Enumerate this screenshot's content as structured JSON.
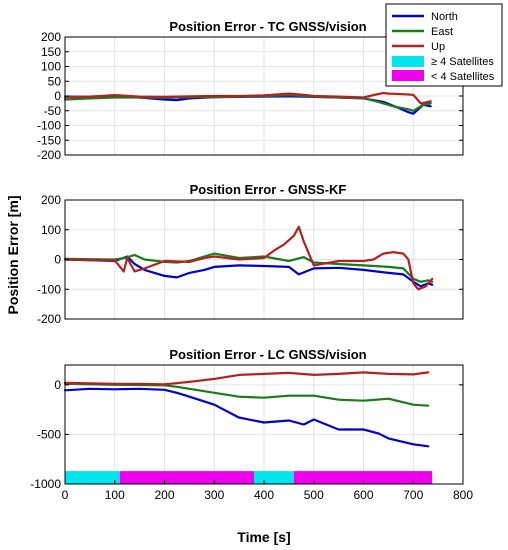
{
  "figure": {
    "ylabel": "Position Error [m]",
    "xlabel": "Time [s]"
  },
  "legend": {
    "items": [
      {
        "label": "North",
        "color": "#0000cc",
        "kind": "line"
      },
      {
        "label": "East",
        "color": "#1b7a1b",
        "kind": "line"
      },
      {
        "label": "Up",
        "color": "#b22222",
        "kind": "line"
      },
      {
        "label": "≥ 4 Satellites",
        "color": "#00e5ee",
        "kind": "patch"
      },
      {
        "label": "< 4 Satellites",
        "color": "#ee00ee",
        "kind": "patch"
      }
    ]
  },
  "chart_data": [
    {
      "type": "line",
      "title": "Position Error - TC GNSS/vision",
      "xlim": [
        0,
        800
      ],
      "ylim": [
        -200,
        200
      ],
      "yticks": [
        -200,
        -150,
        -100,
        -50,
        0,
        50,
        100,
        150,
        200
      ],
      "xticks": [],
      "grid": true,
      "series": [
        {
          "name": "North",
          "color": "#0000cc",
          "x": [
            0,
            50,
            100,
            150,
            200,
            225,
            250,
            300,
            350,
            400,
            450,
            500,
            550,
            600,
            640,
            670,
            690,
            700,
            720,
            735
          ],
          "y": [
            -2,
            -3,
            0,
            -5,
            -12,
            -14,
            -8,
            -4,
            -3,
            -2,
            -1,
            -3,
            -5,
            -8,
            -20,
            -40,
            -55,
            -60,
            -30,
            -35
          ]
        },
        {
          "name": "East",
          "color": "#1b7a1b",
          "x": [
            0,
            50,
            100,
            150,
            200,
            250,
            300,
            350,
            400,
            450,
            500,
            550,
            600,
            630,
            660,
            690,
            700,
            720,
            735
          ],
          "y": [
            -12,
            -8,
            -5,
            -5,
            -6,
            -4,
            -4,
            -2,
            -1,
            3,
            -2,
            -5,
            -7,
            -20,
            -35,
            -45,
            -50,
            -30,
            -25
          ]
        },
        {
          "name": "Up",
          "color": "#b22222",
          "x": [
            0,
            50,
            100,
            150,
            200,
            250,
            300,
            350,
            400,
            450,
            480,
            500,
            550,
            600,
            625,
            640,
            650,
            680,
            700,
            715,
            735
          ],
          "y": [
            -4,
            -2,
            3,
            -2,
            -3,
            -1,
            0,
            0,
            2,
            8,
            4,
            0,
            -2,
            -5,
            5,
            10,
            8,
            6,
            4,
            -25,
            -18
          ]
        }
      ],
      "satellite_bands": []
    },
    {
      "type": "line",
      "title": "Position Error - GNSS-KF",
      "xlim": [
        0,
        800
      ],
      "ylim": [
        -200,
        200
      ],
      "yticks": [
        -200,
        -100,
        0,
        100,
        200
      ],
      "xticks": [],
      "grid": true,
      "series": [
        {
          "name": "North",
          "color": "#0000cc",
          "x": [
            0,
            50,
            100,
            125,
            140,
            160,
            200,
            225,
            250,
            280,
            300,
            350,
            400,
            450,
            470,
            500,
            550,
            600,
            650,
            680,
            700,
            715,
            730,
            738
          ],
          "y": [
            0,
            -2,
            -5,
            10,
            -15,
            -35,
            -55,
            -60,
            -45,
            -35,
            -25,
            -20,
            -22,
            -25,
            -50,
            -30,
            -28,
            -35,
            -45,
            -50,
            -75,
            -90,
            -80,
            -85
          ]
        },
        {
          "name": "East",
          "color": "#1b7a1b",
          "x": [
            0,
            50,
            100,
            120,
            140,
            160,
            200,
            225,
            250,
            280,
            300,
            350,
            400,
            450,
            480,
            500,
            550,
            600,
            650,
            680,
            700,
            715,
            730,
            738
          ],
          "y": [
            2,
            1,
            0,
            5,
            15,
            0,
            -8,
            -10,
            -5,
            10,
            20,
            5,
            10,
            -5,
            8,
            -10,
            -15,
            -20,
            -25,
            -30,
            -65,
            -75,
            -70,
            -75
          ]
        },
        {
          "name": "Up",
          "color": "#b22222",
          "x": [
            0,
            50,
            100,
            118,
            125,
            140,
            160,
            200,
            250,
            280,
            300,
            350,
            400,
            420,
            440,
            460,
            470,
            480,
            490,
            500,
            550,
            600,
            620,
            640,
            660,
            680,
            690,
            700,
            710,
            725,
            738
          ],
          "y": [
            0,
            -2,
            -3,
            -40,
            5,
            -40,
            -30,
            -5,
            -8,
            5,
            10,
            0,
            5,
            30,
            50,
            80,
            110,
            60,
            20,
            -20,
            -5,
            -5,
            0,
            20,
            25,
            20,
            0,
            -80,
            -100,
            -90,
            -65
          ]
        }
      ],
      "satellite_bands": []
    },
    {
      "type": "line",
      "title": "Position Error - LC GNSS/vision",
      "xlim": [
        0,
        800
      ],
      "ylim": [
        -1000,
        200
      ],
      "yticks": [
        -1000,
        -500,
        0
      ],
      "xticks": [
        0,
        100,
        200,
        300,
        400,
        500,
        600,
        700,
        800
      ],
      "grid": true,
      "series": [
        {
          "name": "North",
          "color": "#0000cc",
          "x": [
            0,
            50,
            100,
            150,
            200,
            225,
            250,
            300,
            350,
            400,
            450,
            480,
            500,
            550,
            600,
            630,
            650,
            700,
            730
          ],
          "y": [
            -55,
            -40,
            -45,
            -40,
            -50,
            -80,
            -120,
            -200,
            -330,
            -380,
            -360,
            -400,
            -350,
            -450,
            -450,
            -490,
            -540,
            -600,
            -620
          ]
        },
        {
          "name": "East",
          "color": "#1b7a1b",
          "x": [
            0,
            50,
            100,
            150,
            200,
            225,
            250,
            300,
            350,
            400,
            450,
            500,
            550,
            600,
            650,
            700,
            730
          ],
          "y": [
            10,
            5,
            0,
            -2,
            -5,
            -20,
            -40,
            -80,
            -120,
            -130,
            -110,
            -110,
            -150,
            -160,
            -140,
            -200,
            -210
          ]
        },
        {
          "name": "Up",
          "color": "#b22222",
          "x": [
            0,
            50,
            100,
            150,
            200,
            250,
            300,
            350,
            400,
            450,
            500,
            550,
            600,
            650,
            700,
            730
          ],
          "y": [
            20,
            15,
            10,
            10,
            5,
            30,
            60,
            100,
            110,
            120,
            100,
            110,
            125,
            110,
            105,
            125
          ]
        }
      ],
      "satellite_bands": [
        {
          "kind": "ge4",
          "x0": 0,
          "x1": 110
        },
        {
          "kind": "lt4",
          "x0": 110,
          "x1": 380
        },
        {
          "kind": "ge4",
          "x0": 380,
          "x1": 460
        },
        {
          "kind": "lt4",
          "x0": 460,
          "x1": 738
        }
      ]
    }
  ]
}
